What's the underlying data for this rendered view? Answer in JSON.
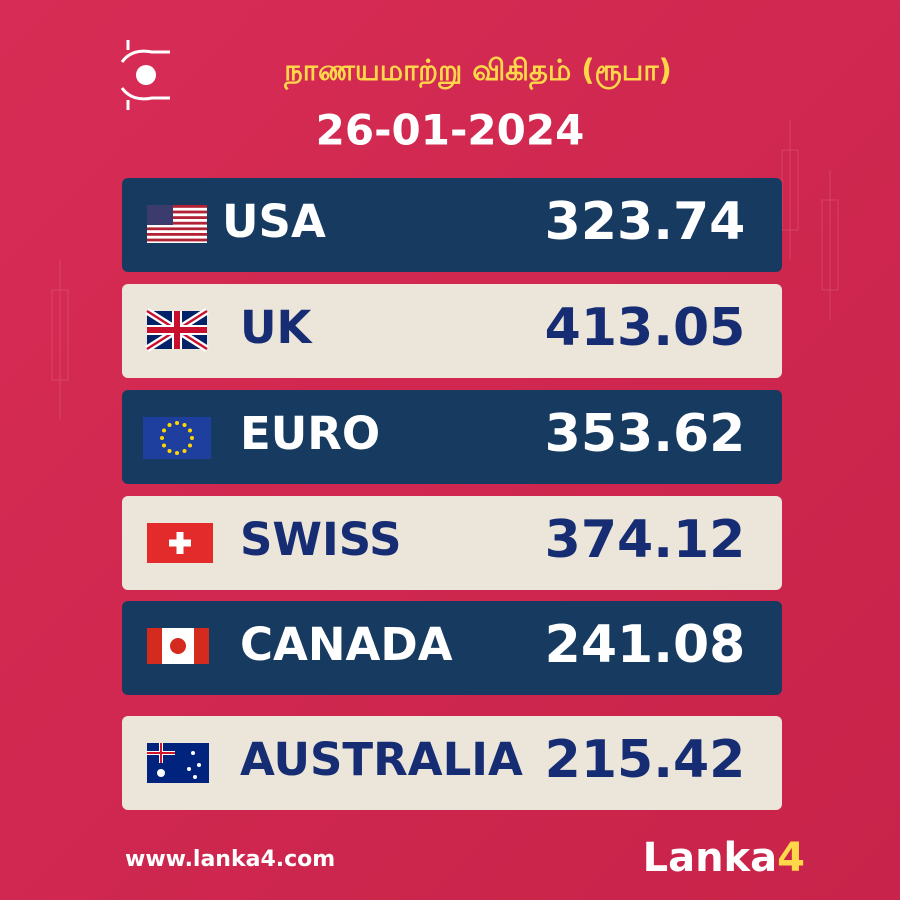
{
  "header": {
    "title": "நாணயமாற்று விகிதம் (ரூபா)",
    "date": "26-01-2024"
  },
  "table": {
    "rows": [
      [
        "USA",
        "323.74"
      ],
      [
        "UK",
        "413.05"
      ],
      [
        "EURO",
        "353.62"
      ],
      [
        "SWISS",
        "374.12"
      ],
      [
        "CANADA",
        "241.08"
      ],
      [
        "AUSTRALIA",
        "215.42"
      ]
    ]
  },
  "footer": {
    "website": "www.lanka4.com",
    "brand": [
      "Lanka",
      "4"
    ]
  }
}
